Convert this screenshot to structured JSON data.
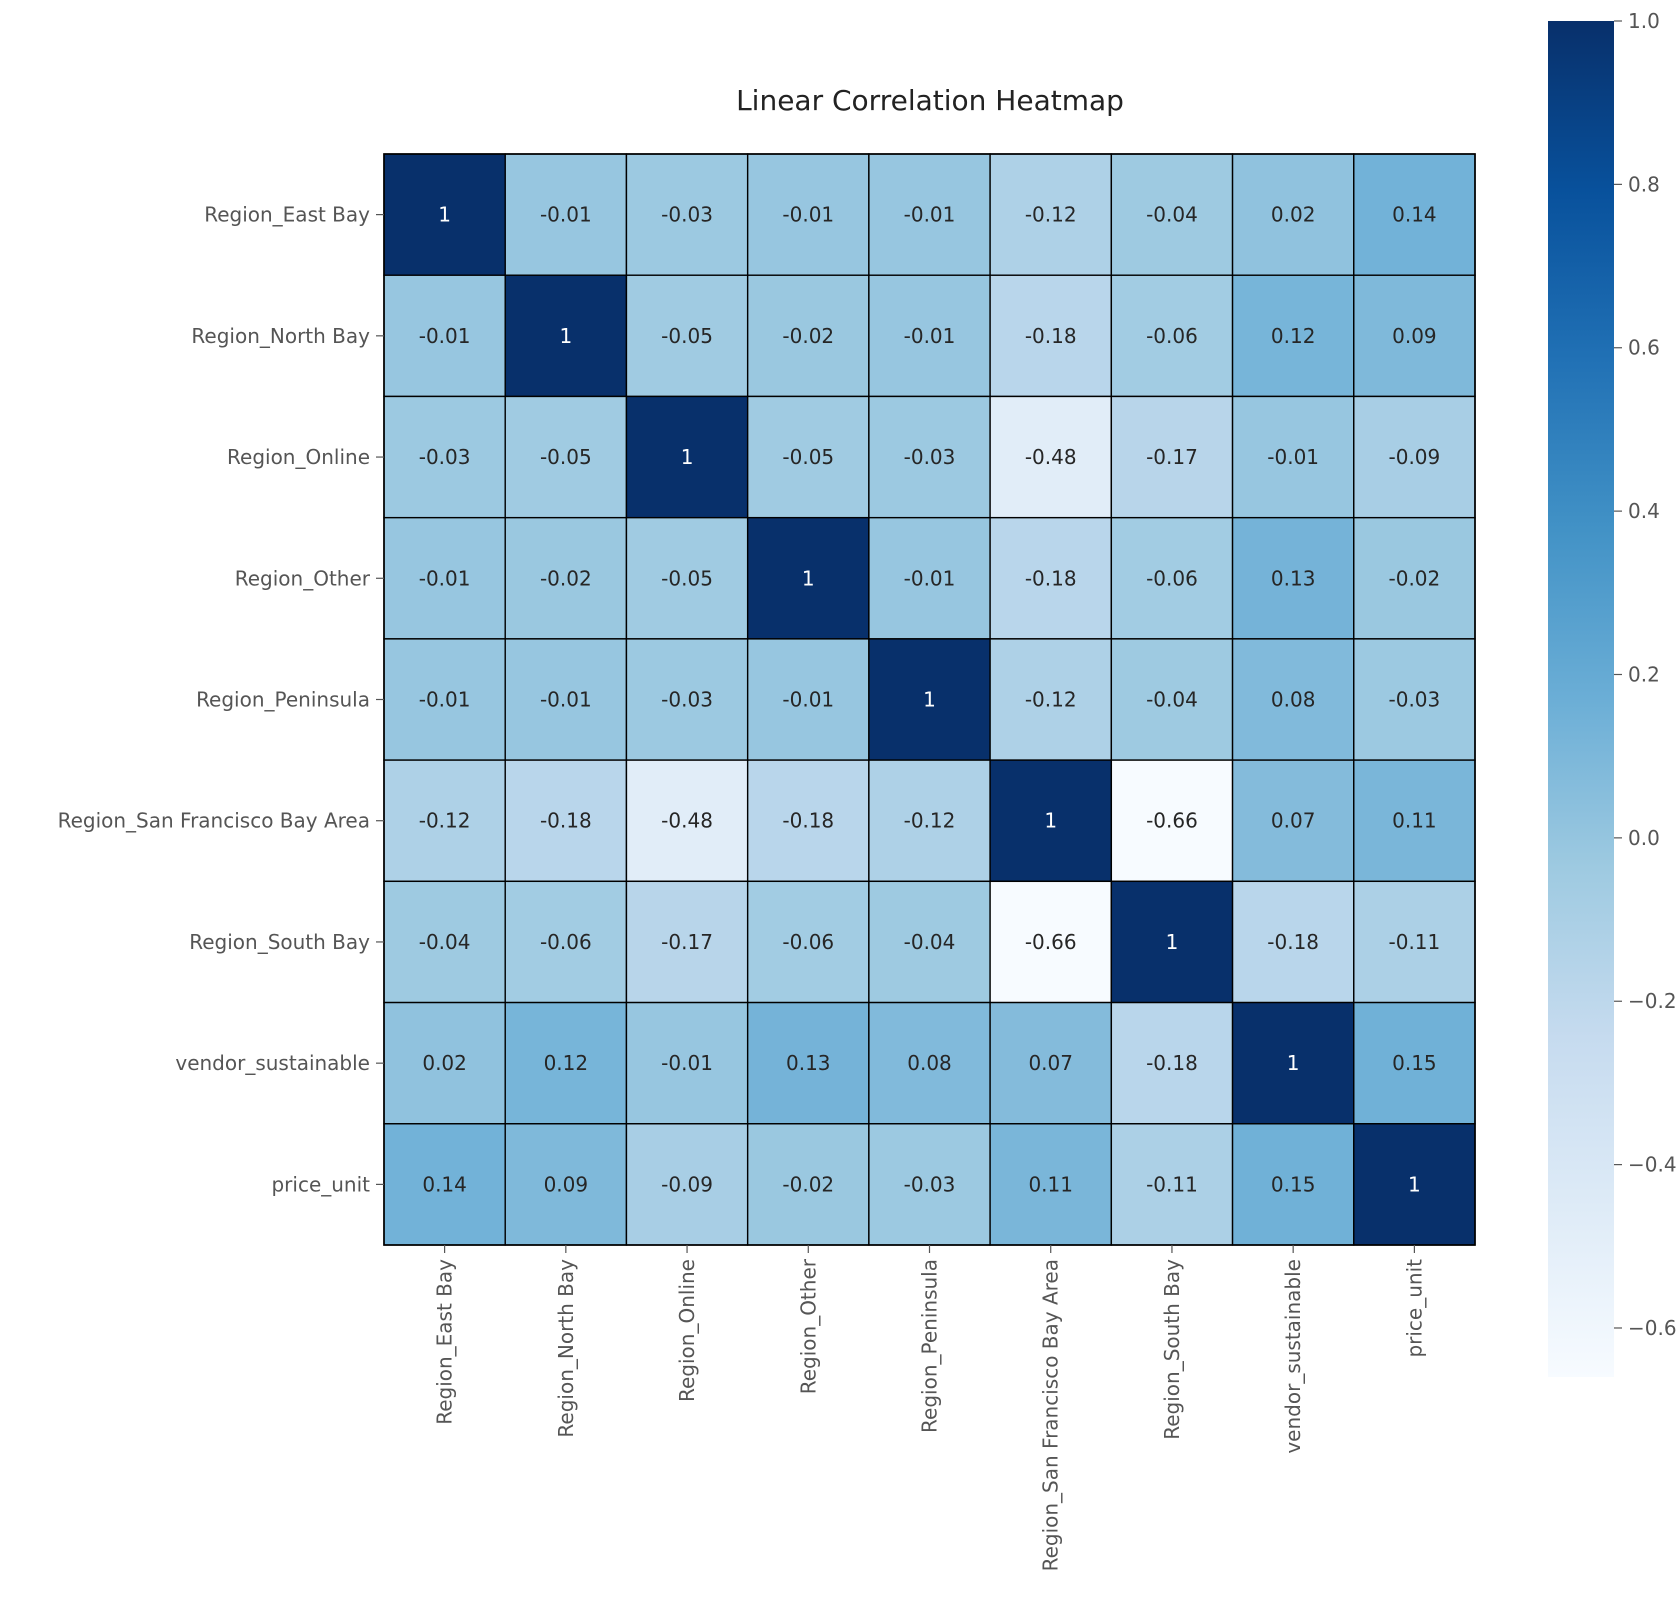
{
  "chart_data": {
    "type": "heatmap",
    "title": "Linear Correlation Heatmap",
    "xlabel": "",
    "ylabel": "",
    "labels": [
      "Region_East Bay",
      "Region_North Bay",
      "Region_Online",
      "Region_Other",
      "Region_Peninsula",
      "Region_San Francisco Bay Area",
      "Region_South Bay",
      "vendor_sustainable",
      "price_unit"
    ],
    "matrix": [
      [
        1,
        -0.01,
        -0.03,
        -0.01,
        -0.01,
        -0.12,
        -0.04,
        0.02,
        0.14
      ],
      [
        -0.01,
        1,
        -0.05,
        -0.02,
        -0.01,
        -0.18,
        -0.06,
        0.12,
        0.09
      ],
      [
        -0.03,
        -0.05,
        1,
        -0.05,
        -0.03,
        -0.48,
        -0.17,
        -0.01,
        -0.09
      ],
      [
        -0.01,
        -0.02,
        -0.05,
        1,
        -0.01,
        -0.18,
        -0.06,
        0.13,
        -0.02
      ],
      [
        -0.01,
        -0.01,
        -0.03,
        -0.01,
        1,
        -0.12,
        -0.04,
        0.08,
        -0.03
      ],
      [
        -0.12,
        -0.18,
        -0.48,
        -0.18,
        -0.12,
        1,
        -0.66,
        0.07,
        0.11
      ],
      [
        -0.04,
        -0.06,
        -0.17,
        -0.06,
        -0.04,
        -0.66,
        1,
        -0.18,
        -0.11
      ],
      [
        0.02,
        0.12,
        -0.01,
        0.13,
        0.08,
        0.07,
        -0.18,
        1,
        0.15
      ],
      [
        0.14,
        0.09,
        -0.09,
        -0.02,
        -0.03,
        0.11,
        -0.11,
        0.15,
        1
      ]
    ],
    "colorscale": {
      "name": "Blues",
      "min": -0.66,
      "max": 1.0,
      "ticks": [
        1.0,
        0.8,
        0.6,
        0.4,
        0.2,
        0.0,
        -0.2,
        -0.4,
        -0.6
      ],
      "tick_labels": [
        "1.0",
        "0.8",
        "0.6",
        "0.4",
        "0.2",
        "0.0",
        "−0.2",
        "−0.4",
        "−0.6"
      ],
      "stops": [
        "#f7fbff",
        "#deebf7",
        "#c6dbef",
        "#9ecae1",
        "#6baed6",
        "#4292c6",
        "#2171b5",
        "#08519c",
        "#08306b"
      ]
    },
    "colorbar_position": "right",
    "grid": false
  }
}
